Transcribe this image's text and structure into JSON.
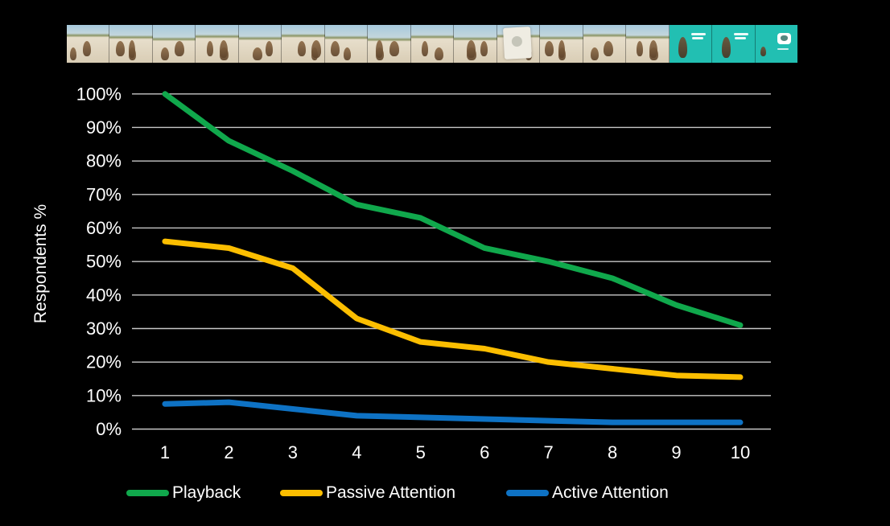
{
  "window": {
    "background": "#000000"
  },
  "filmstrip": {
    "description": "video-thumbnail-strip-meerkats-ad",
    "frames": [
      "beach",
      "beach",
      "beach",
      "beach",
      "beach",
      "beach",
      "beach",
      "beach",
      "beach",
      "beach",
      "beach-card",
      "beach",
      "beach",
      "beach",
      "teal-text",
      "teal-text",
      "teal-logo"
    ],
    "colors": {
      "sky": "#a6c9dd",
      "sand": "#e7decb",
      "grass": "#8a9464",
      "meerkat": "#7b5c3d",
      "teal_endcard": "#22bfb2",
      "card": "#efece2",
      "logo": "#ffffff"
    }
  },
  "chart_data": {
    "type": "line",
    "title": "",
    "xlabel": "",
    "ylabel": "Respondents %",
    "categories": [
      1,
      2,
      3,
      4,
      5,
      6,
      7,
      8,
      9,
      10
    ],
    "x_tick_labels": [
      "1",
      "2",
      "3",
      "4",
      "5",
      "6",
      "7",
      "8",
      "9",
      "10"
    ],
    "y_tick_labels": [
      "100%",
      "90%",
      "80%",
      "70%",
      "60%",
      "50%",
      "40%",
      "30%",
      "20%",
      "10%",
      "0%"
    ],
    "ylim": [
      0,
      100
    ],
    "grid": "horizontal-only",
    "gridline_color": "#c7c7c7",
    "text_color": "#ffffff",
    "legend_position": "bottom",
    "line_width": 7,
    "series": [
      {
        "name": "Playback",
        "color": "#10a84c",
        "values": [
          100,
          86,
          77,
          67,
          63,
          54,
          50,
          45,
          37,
          31
        ]
      },
      {
        "name": "Passive Attention",
        "color": "#fcbe00",
        "values": [
          56,
          54,
          48,
          33,
          26,
          24,
          20,
          18,
          16,
          15.5
        ]
      },
      {
        "name": "Active Attention",
        "color": "#0e72c4",
        "values": [
          7.5,
          8,
          6,
          4,
          3.5,
          3,
          2.5,
          2,
          2,
          2
        ]
      }
    ]
  }
}
